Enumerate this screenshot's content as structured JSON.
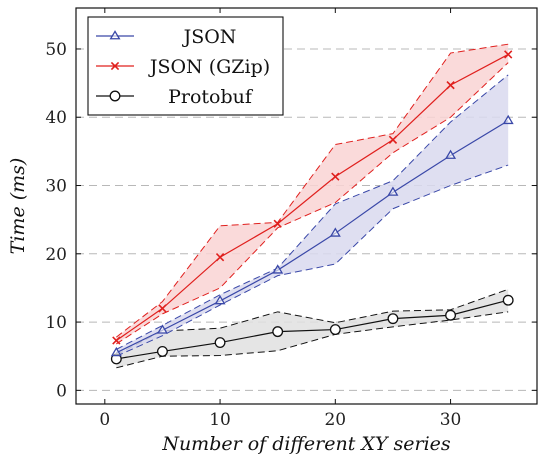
{
  "chart_data": {
    "type": "line",
    "title": "",
    "xlabel": "Number of different XY series",
    "ylabel": "Time (ms)",
    "ylabel_parts": [
      "Time (",
      "ms",
      ")"
    ],
    "xlim": [
      -2.5,
      37.5
    ],
    "ylim": [
      -2,
      56
    ],
    "xticks": [
      0,
      10,
      20,
      30
    ],
    "yticks": [
      0,
      10,
      20,
      30,
      40,
      50
    ],
    "grid": "horizontal dashed",
    "legend": "top-left",
    "x": [
      1,
      5,
      10,
      15,
      20,
      25,
      30,
      35
    ],
    "series": [
      {
        "name": "JSON",
        "color": "#3a48a8",
        "fill": "#d9d9ee",
        "marker": "triangle",
        "values": [
          5.5,
          8.8,
          13.1,
          17.6,
          23.0,
          29.0,
          34.4,
          39.5
        ],
        "upper": [
          6.0,
          9.5,
          14.0,
          17.9,
          27.3,
          30.7,
          39.3,
          46.2
        ],
        "lower": [
          5.0,
          8.0,
          12.5,
          16.8,
          18.5,
          26.6,
          30.0,
          33.0
        ]
      },
      {
        "name": "JSON (GZip)",
        "color": "#e0201e",
        "fill": "#f9d4d4",
        "marker": "cross",
        "values": [
          7.3,
          12.0,
          19.5,
          24.4,
          31.3,
          36.7,
          44.7,
          49.2
        ],
        "upper": [
          7.8,
          13.0,
          24.1,
          24.6,
          36.0,
          37.6,
          49.4,
          50.7
        ],
        "lower": [
          6.8,
          11.2,
          15.0,
          23.8,
          27.5,
          34.8,
          40.0,
          48.0
        ]
      },
      {
        "name": "Protobuf",
        "color": "#111111",
        "fill": "#e0e0e0",
        "marker": "circle",
        "values": [
          4.6,
          5.7,
          7.0,
          8.6,
          8.9,
          10.5,
          11.0,
          13.2
        ],
        "upper": [
          5.2,
          8.7,
          9.1,
          11.5,
          9.9,
          11.6,
          11.8,
          14.8
        ],
        "lower": [
          3.3,
          5.0,
          5.1,
          5.8,
          8.2,
          9.3,
          10.3,
          11.5
        ]
      }
    ]
  }
}
